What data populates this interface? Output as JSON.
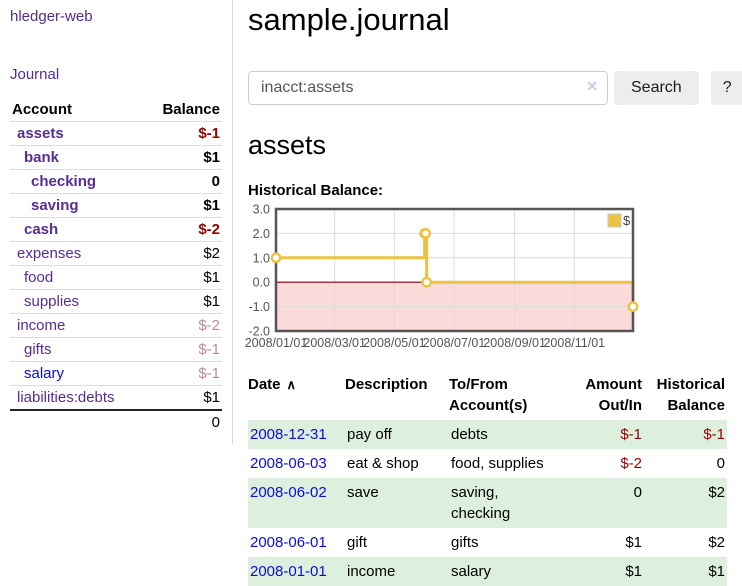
{
  "sidebar": {
    "brand": "hledger-web",
    "nav": {
      "journal": "Journal"
    },
    "accounts_table": {
      "headers": {
        "account": "Account",
        "balance": "Balance"
      },
      "rows": [
        {
          "label": "assets",
          "indent": 1,
          "bold": true,
          "link": "purple",
          "balance": "$-1",
          "balance_class": "neg"
        },
        {
          "label": "bank",
          "indent": 2,
          "bold": true,
          "link": "purple",
          "balance": "$1",
          "balance_class": ""
        },
        {
          "label": "checking",
          "indent": 3,
          "bold": true,
          "link": "purple",
          "balance": "0",
          "balance_class": ""
        },
        {
          "label": "saving",
          "indent": 3,
          "bold": true,
          "link": "purple",
          "balance": "$1",
          "balance_class": ""
        },
        {
          "label": "cash",
          "indent": 2,
          "bold": true,
          "link": "purple",
          "balance": "$-2",
          "balance_class": "neg"
        },
        {
          "label": "expenses",
          "indent": 1,
          "bold": false,
          "link": "purple",
          "balance": "$2",
          "balance_class": ""
        },
        {
          "label": "food",
          "indent": 2,
          "bold": false,
          "link": "purple",
          "balance": "$1",
          "balance_class": ""
        },
        {
          "label": "supplies",
          "indent": 2,
          "bold": false,
          "link": "purple",
          "balance": "$1",
          "balance_class": ""
        },
        {
          "label": "income",
          "indent": 1,
          "bold": false,
          "link": "purple",
          "balance": "$-2",
          "balance_class": "soft"
        },
        {
          "label": "gifts",
          "indent": 2,
          "bold": false,
          "link": "purple",
          "balance": "$-1",
          "balance_class": "soft"
        },
        {
          "label": "salary",
          "indent": 2,
          "bold": false,
          "link": "blue",
          "balance": "$-1",
          "balance_class": "soft"
        },
        {
          "label": "liabilities:debts",
          "indent": 1,
          "bold": false,
          "link": "purple",
          "balance": "$1",
          "balance_class": ""
        }
      ],
      "total": "0"
    }
  },
  "header": {
    "title": "sample.journal"
  },
  "search": {
    "value": "inacct:assets",
    "clear_icon": "✕",
    "search_label": "Search",
    "help_label": "?"
  },
  "account_page": {
    "heading": "assets",
    "chart_label": "Historical Balance:"
  },
  "chart_data": {
    "type": "line",
    "step": true,
    "title": "Historical Balance",
    "series": [
      {
        "name": "$",
        "color": "#EDC240",
        "points": [
          {
            "date": "2008-01-01",
            "day": 0,
            "value": 1.0
          },
          {
            "date": "2008-06-01",
            "day": 152,
            "value": 2.0
          },
          {
            "date": "2008-06-02",
            "day": 153,
            "value": 2.0
          },
          {
            "date": "2008-06-03",
            "day": 154,
            "value": 0.0
          },
          {
            "date": "2008-12-31",
            "day": 365,
            "value": -1.0
          }
        ]
      }
    ],
    "xticks": [
      {
        "day": 0,
        "label": "2008/01/01"
      },
      {
        "day": 60,
        "label": "2008/03/01"
      },
      {
        "day": 121,
        "label": "2008/05/01"
      },
      {
        "day": 182,
        "label": "2008/07/01"
      },
      {
        "day": 244,
        "label": "2008/09/01"
      },
      {
        "day": 305,
        "label": "2008/11/01"
      }
    ],
    "yticks": [
      "3.0",
      "2.0",
      "1.0",
      "0.0",
      "-1.0",
      "-2.0"
    ],
    "xlim": [
      0,
      365
    ],
    "ylim": [
      -2,
      3
    ],
    "grid": true,
    "legend": {
      "position": "top-right",
      "label": "$"
    },
    "colors": {
      "line": "#EDC240",
      "marker_fill": "#ffffff",
      "negative_fill": "#fbdada",
      "zero_line": "#8b0000",
      "border": "#555555",
      "gridline": "#dcdcdc",
      "axis_text": "#545454"
    }
  },
  "register": {
    "sort_asc_icon": "∧",
    "headers": [
      {
        "label": "Date"
      },
      {
        "label": "Description"
      },
      {
        "label": "To/From Account(s)"
      },
      {
        "label": "Amount Out/In"
      },
      {
        "label": "Historical Balance"
      }
    ],
    "rows": [
      {
        "date": "2008-12-31",
        "description": "pay off",
        "accounts": "debts",
        "amount": "$-1",
        "balance": "$-1",
        "stripe": true
      },
      {
        "date": "2008-06-03",
        "description": "eat & shop",
        "accounts": "food, supplies",
        "amount": "$-2",
        "balance": "0",
        "stripe": false
      },
      {
        "date": "2008-06-02",
        "description": "save",
        "accounts": "saving, checking",
        "amount": "0",
        "balance": "$2",
        "stripe": true
      },
      {
        "date": "2008-06-01",
        "description": "gift",
        "accounts": "gifts",
        "amount": "$1",
        "balance": "$2",
        "stripe": false
      },
      {
        "date": "2008-01-01",
        "description": "income",
        "accounts": "salary",
        "amount": "$1",
        "balance": "$1",
        "stripe": true
      }
    ]
  }
}
